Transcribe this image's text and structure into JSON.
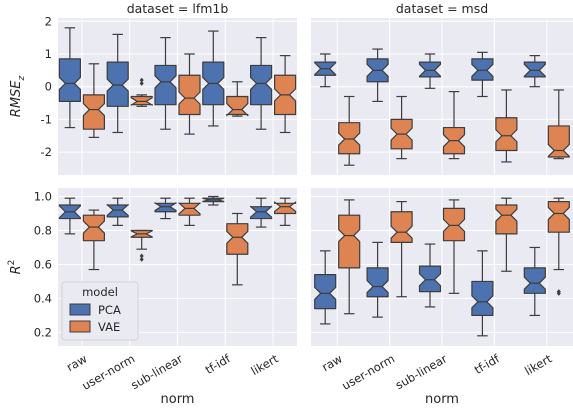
{
  "chart_data": {
    "type": "box",
    "layout": "2x2 facet grid (rows = metric, columns = dataset)",
    "xlabel": "norm",
    "categories": [
      "raw",
      "user-norm",
      "sub-linear",
      "tf-idf",
      "likert"
    ],
    "columns": [
      {
        "id": "lfm1b",
        "title": "dataset = lfm1b"
      },
      {
        "id": "msd",
        "title": "dataset = msd"
      }
    ],
    "rows": [
      {
        "id": "rmse",
        "ylabel": "RMSE",
        "ylabel_sub": "z",
        "ylim": [
          -2.7,
          2.1
        ],
        "yticks": [
          "-2",
          "-1",
          "0",
          "1",
          "2"
        ]
      },
      {
        "id": "r2",
        "ylabel": "R",
        "ylabel_sup": "2",
        "ylim": [
          0.12,
          1.05
        ],
        "yticks": [
          "0.2",
          "0.4",
          "0.6",
          "0.8",
          "1.0"
        ]
      }
    ],
    "colors": {
      "PCA": "#4c72b0",
      "VAE": "#dd8452",
      "panel_bg": "#eaeaf2",
      "grid": "#ffffff",
      "line": "#3d3d3d"
    },
    "grid": true,
    "notched": true,
    "legend": {
      "title": "model",
      "entries": [
        "PCA",
        "VAE"
      ],
      "placement": "lower-left of bottom-left panel"
    },
    "panels": [
      {
        "row": "rmse",
        "column": "lfm1b",
        "series": [
          {
            "name": "PCA",
            "boxes": [
              {
                "whislo": -1.25,
                "q1": -0.45,
                "med": 0.1,
                "q3": 0.85,
                "whishi": 1.8,
                "fliers": []
              },
              {
                "whislo": -1.4,
                "q1": -0.6,
                "med": 0.05,
                "q3": 0.75,
                "whishi": 1.6,
                "fliers": []
              },
              {
                "whislo": -1.3,
                "q1": -0.55,
                "med": 0.15,
                "q3": 0.65,
                "whishi": 1.5,
                "fliers": []
              },
              {
                "whislo": -1.2,
                "q1": -0.55,
                "med": 0.1,
                "q3": 0.75,
                "whishi": 1.7,
                "fliers": []
              },
              {
                "whislo": -1.3,
                "q1": -0.55,
                "med": 0.1,
                "q3": 0.65,
                "whishi": 1.5,
                "fliers": []
              }
            ]
          },
          {
            "name": "VAE",
            "boxes": [
              {
                "whislo": -1.55,
                "q1": -1.3,
                "med": -0.7,
                "q3": -0.25,
                "whishi": 0.7,
                "fliers": []
              },
              {
                "whislo": -0.6,
                "q1": -0.55,
                "med": -0.45,
                "q3": -0.3,
                "whishi": -0.25,
                "fliers": [
                  0.2,
                  0.1
                ]
              },
              {
                "whislo": -1.45,
                "q1": -0.85,
                "med": -0.35,
                "q3": 0.35,
                "whishi": 1.0,
                "fliers": []
              },
              {
                "whislo": -0.9,
                "q1": -0.85,
                "med": -0.7,
                "q3": -0.3,
                "whishi": 0.15,
                "fliers": []
              },
              {
                "whislo": -1.4,
                "q1": -0.85,
                "med": -0.25,
                "q3": 0.35,
                "whishi": 0.95,
                "fliers": []
              }
            ]
          }
        ]
      },
      {
        "row": "rmse",
        "column": "msd",
        "series": [
          {
            "name": "PCA",
            "boxes": [
              {
                "whislo": 0.0,
                "q1": 0.35,
                "med": 0.55,
                "q3": 0.75,
                "whishi": 1.0,
                "fliers": []
              },
              {
                "whislo": -0.45,
                "q1": 0.15,
                "med": 0.5,
                "q3": 0.85,
                "whishi": 1.15,
                "fliers": []
              },
              {
                "whislo": -0.05,
                "q1": 0.3,
                "med": 0.5,
                "q3": 0.75,
                "whishi": 1.0,
                "fliers": []
              },
              {
                "whislo": -0.3,
                "q1": 0.2,
                "med": 0.5,
                "q3": 0.85,
                "whishi": 1.05,
                "fliers": []
              },
              {
                "whislo": 0.0,
                "q1": 0.3,
                "med": 0.5,
                "q3": 0.75,
                "whishi": 0.95,
                "fliers": []
              }
            ]
          },
          {
            "name": "VAE",
            "boxes": [
              {
                "whislo": -2.4,
                "q1": -2.05,
                "med": -1.6,
                "q3": -1.1,
                "whishi": -0.3,
                "fliers": []
              },
              {
                "whislo": -2.2,
                "q1": -1.9,
                "med": -1.45,
                "q3": -1.0,
                "whishi": -0.3,
                "fliers": []
              },
              {
                "whislo": -2.2,
                "q1": -2.05,
                "med": -1.65,
                "q3": -1.25,
                "whishi": -0.15,
                "fliers": []
              },
              {
                "whislo": -2.3,
                "q1": -1.95,
                "med": -1.5,
                "q3": -0.95,
                "whishi": -0.1,
                "fliers": []
              },
              {
                "whislo": -2.2,
                "q1": -2.15,
                "med": -1.95,
                "q3": -1.2,
                "whishi": -0.1,
                "fliers": []
              }
            ]
          }
        ]
      },
      {
        "row": "r2",
        "column": "lfm1b",
        "series": [
          {
            "name": "PCA",
            "boxes": [
              {
                "whislo": 0.78,
                "q1": 0.87,
                "med": 0.91,
                "q3": 0.95,
                "whishi": 0.99,
                "fliers": []
              },
              {
                "whislo": 0.83,
                "q1": 0.88,
                "med": 0.92,
                "q3": 0.95,
                "whishi": 0.99,
                "fliers": []
              },
              {
                "whislo": 0.87,
                "q1": 0.91,
                "med": 0.94,
                "q3": 0.96,
                "whishi": 0.99,
                "fliers": []
              },
              {
                "whislo": 0.95,
                "q1": 0.97,
                "med": 0.98,
                "q3": 0.99,
                "whishi": 1.0,
                "fliers": []
              },
              {
                "whislo": 0.82,
                "q1": 0.87,
                "med": 0.91,
                "q3": 0.94,
                "whishi": 0.99,
                "fliers": []
              }
            ]
          },
          {
            "name": "VAE",
            "boxes": [
              {
                "whislo": 0.57,
                "q1": 0.74,
                "med": 0.82,
                "q3": 0.89,
                "whishi": 0.92,
                "fliers": []
              },
              {
                "whislo": 0.69,
                "q1": 0.76,
                "med": 0.78,
                "q3": 0.8,
                "whishi": 0.8,
                "fliers": [
                  0.65,
                  0.63
                ]
              },
              {
                "whislo": 0.83,
                "q1": 0.89,
                "med": 0.93,
                "q3": 0.96,
                "whishi": 0.99,
                "fliers": []
              },
              {
                "whislo": 0.48,
                "q1": 0.66,
                "med": 0.76,
                "q3": 0.84,
                "whishi": 0.9,
                "fliers": []
              },
              {
                "whislo": 0.83,
                "q1": 0.9,
                "med": 0.94,
                "q3": 0.96,
                "whishi": 0.99,
                "fliers": []
              }
            ]
          }
        ]
      },
      {
        "row": "r2",
        "column": "msd",
        "series": [
          {
            "name": "PCA",
            "boxes": [
              {
                "whislo": 0.25,
                "q1": 0.34,
                "med": 0.43,
                "q3": 0.54,
                "whishi": 0.68,
                "fliers": []
              },
              {
                "whislo": 0.29,
                "q1": 0.41,
                "med": 0.47,
                "q3": 0.58,
                "whishi": 0.73,
                "fliers": []
              },
              {
                "whislo": 0.35,
                "q1": 0.44,
                "med": 0.51,
                "q3": 0.59,
                "whishi": 0.72,
                "fliers": []
              },
              {
                "whislo": 0.18,
                "q1": 0.3,
                "med": 0.38,
                "q3": 0.5,
                "whishi": 0.68,
                "fliers": []
              },
              {
                "whislo": 0.3,
                "q1": 0.43,
                "med": 0.49,
                "q3": 0.58,
                "whishi": 0.7,
                "fliers": []
              }
            ]
          },
          {
            "name": "VAE",
            "boxes": [
              {
                "whislo": 0.31,
                "q1": 0.58,
                "med": 0.77,
                "q3": 0.89,
                "whishi": 0.98,
                "fliers": []
              },
              {
                "whislo": 0.41,
                "q1": 0.73,
                "med": 0.79,
                "q3": 0.91,
                "whishi": 0.97,
                "fliers": []
              },
              {
                "whislo": 0.43,
                "q1": 0.74,
                "med": 0.83,
                "q3": 0.93,
                "whishi": 0.98,
                "fliers": []
              },
              {
                "whislo": 0.56,
                "q1": 0.78,
                "med": 0.89,
                "q3": 0.95,
                "whishi": 0.99,
                "fliers": []
              },
              {
                "whislo": 0.57,
                "q1": 0.79,
                "med": 0.9,
                "q3": 0.97,
                "whishi": 0.99,
                "fliers": [
                  0.43,
                  0.44
                ]
              }
            ]
          }
        ]
      }
    ]
  }
}
